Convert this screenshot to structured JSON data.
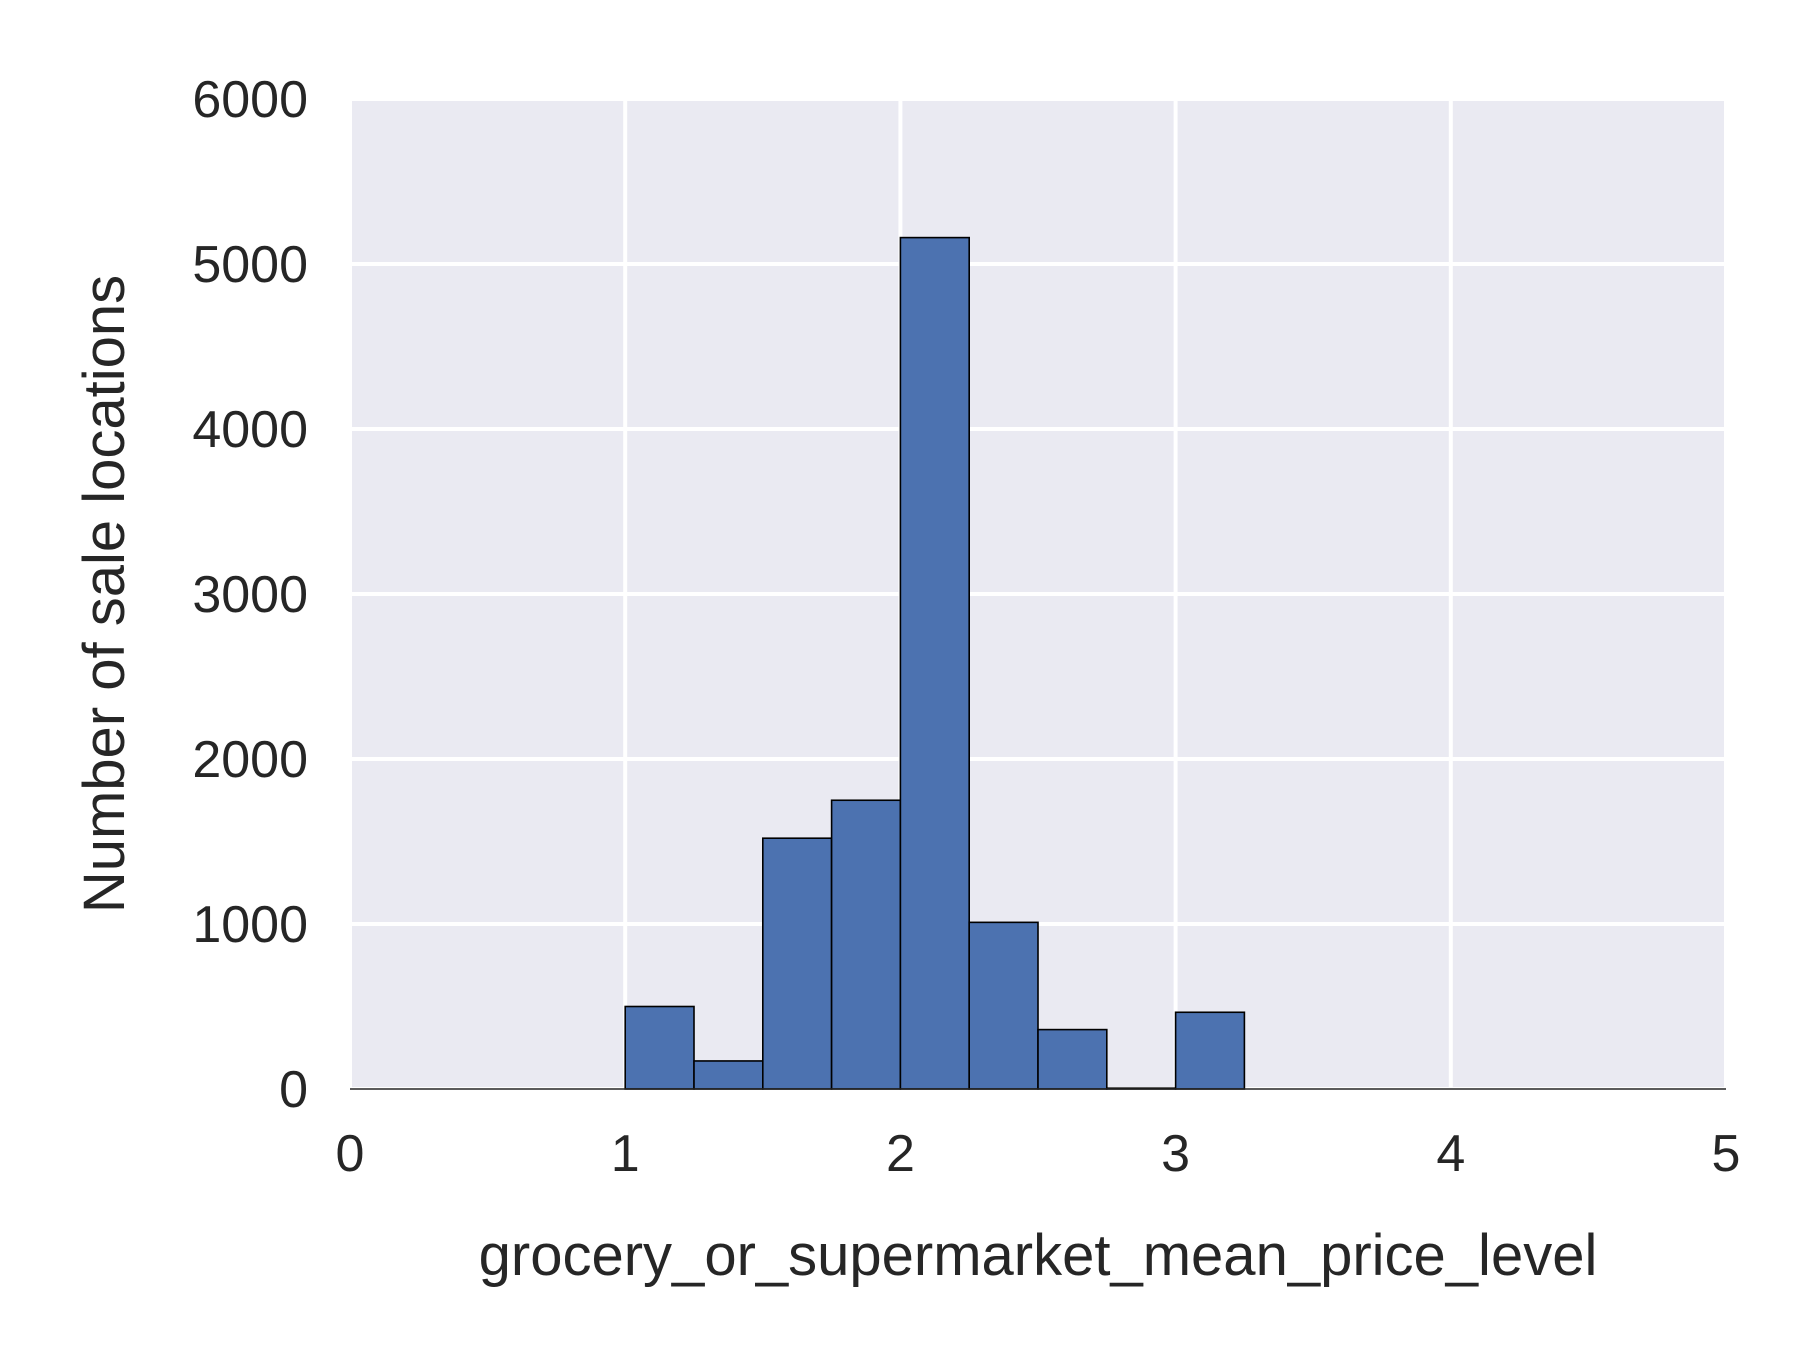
{
  "chart_data": {
    "type": "bar",
    "subtype": "histogram",
    "xlabel": "grocery_or_supermarket_mean_price_level",
    "ylabel": "Number of sale locations",
    "xlim": [
      0,
      5
    ],
    "ylim": [
      0,
      6000
    ],
    "xticks": [
      "0",
      "1",
      "2",
      "3",
      "4",
      "5"
    ],
    "yticks": [
      "0",
      "1000",
      "2000",
      "3000",
      "4000",
      "5000",
      "6000"
    ],
    "grid": true,
    "bar_color": "#4c72b0",
    "background_color": "#eaeaf2",
    "bins": [
      {
        "x0": 0.0,
        "x1": 0.25,
        "value": 0
      },
      {
        "x0": 0.25,
        "x1": 0.5,
        "value": 0
      },
      {
        "x0": 0.5,
        "x1": 0.75,
        "value": 0
      },
      {
        "x0": 0.75,
        "x1": 1.0,
        "value": 0
      },
      {
        "x0": 1.0,
        "x1": 1.25,
        "value": 500
      },
      {
        "x0": 1.25,
        "x1": 1.5,
        "value": 170
      },
      {
        "x0": 1.5,
        "x1": 1.75,
        "value": 1520
      },
      {
        "x0": 1.75,
        "x1": 2.0,
        "value": 1750
      },
      {
        "x0": 2.0,
        "x1": 2.25,
        "value": 5160
      },
      {
        "x0": 2.25,
        "x1": 2.5,
        "value": 1010
      },
      {
        "x0": 2.5,
        "x1": 2.75,
        "value": 360
      },
      {
        "x0": 2.75,
        "x1": 3.0,
        "value": 5
      },
      {
        "x0": 3.0,
        "x1": 3.25,
        "value": 465
      },
      {
        "x0": 3.25,
        "x1": 3.5,
        "value": 0
      },
      {
        "x0": 3.5,
        "x1": 3.75,
        "value": 0
      },
      {
        "x0": 3.75,
        "x1": 4.0,
        "value": 0
      },
      {
        "x0": 4.0,
        "x1": 4.25,
        "value": 0
      },
      {
        "x0": 4.25,
        "x1": 4.5,
        "value": 0
      },
      {
        "x0": 4.5,
        "x1": 4.75,
        "value": 0
      },
      {
        "x0": 4.75,
        "x1": 5.0,
        "value": 0
      }
    ]
  }
}
